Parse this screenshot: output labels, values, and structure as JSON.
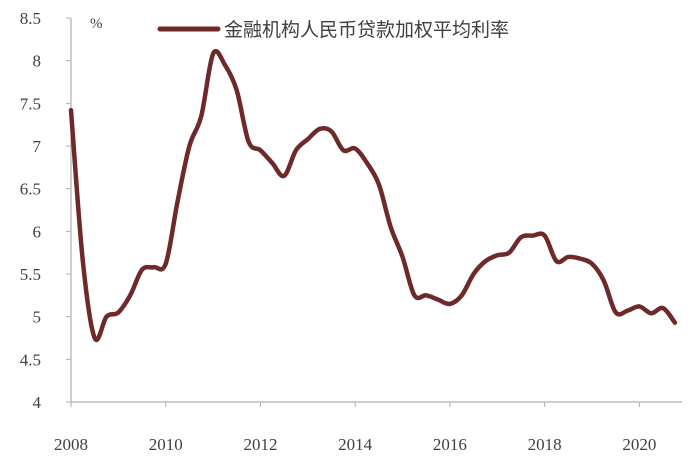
{
  "chart_data": {
    "type": "line",
    "ylabel": "%",
    "ylim": [
      4,
      8.5
    ],
    "xlim": [
      2008,
      2020.9
    ],
    "y_ticks": [
      "4",
      "4.5",
      "5",
      "5.5",
      "6",
      "6.5",
      "7",
      "7.5",
      "8",
      "8.5"
    ],
    "x_ticks": [
      "2008",
      "2010",
      "2012",
      "2014",
      "2016",
      "2018",
      "2020"
    ],
    "legend_position": "top-center",
    "colors": {
      "series": "#6e2a2a"
    },
    "series": [
      {
        "name": "金融机构人民币贷款加权平均利率",
        "points": [
          [
            2008.0,
            7.42
          ],
          [
            2008.25,
            5.65
          ],
          [
            2008.5,
            4.75
          ],
          [
            2008.75,
            5.0
          ],
          [
            2009.0,
            5.05
          ],
          [
            2009.25,
            5.25
          ],
          [
            2009.5,
            5.55
          ],
          [
            2009.75,
            5.58
          ],
          [
            2010.0,
            5.62
          ],
          [
            2010.25,
            6.35
          ],
          [
            2010.5,
            7.0
          ],
          [
            2010.75,
            7.35
          ],
          [
            2011.0,
            8.08
          ],
          [
            2011.25,
            7.95
          ],
          [
            2011.5,
            7.65
          ],
          [
            2011.75,
            7.05
          ],
          [
            2012.0,
            6.95
          ],
          [
            2012.25,
            6.8
          ],
          [
            2012.5,
            6.65
          ],
          [
            2012.75,
            6.95
          ],
          [
            2013.0,
            7.08
          ],
          [
            2013.25,
            7.2
          ],
          [
            2013.5,
            7.17
          ],
          [
            2013.75,
            6.95
          ],
          [
            2014.0,
            6.97
          ],
          [
            2014.25,
            6.8
          ],
          [
            2014.5,
            6.55
          ],
          [
            2014.75,
            6.05
          ],
          [
            2015.0,
            5.7
          ],
          [
            2015.25,
            5.25
          ],
          [
            2015.5,
            5.25
          ],
          [
            2015.75,
            5.2
          ],
          [
            2016.0,
            5.15
          ],
          [
            2016.25,
            5.25
          ],
          [
            2016.5,
            5.5
          ],
          [
            2016.75,
            5.65
          ],
          [
            2017.0,
            5.72
          ],
          [
            2017.25,
            5.75
          ],
          [
            2017.5,
            5.93
          ],
          [
            2017.75,
            5.95
          ],
          [
            2018.0,
            5.95
          ],
          [
            2018.25,
            5.65
          ],
          [
            2018.5,
            5.7
          ],
          [
            2018.75,
            5.68
          ],
          [
            2019.0,
            5.62
          ],
          [
            2019.25,
            5.42
          ],
          [
            2019.5,
            5.05
          ],
          [
            2019.75,
            5.07
          ],
          [
            2020.0,
            5.12
          ],
          [
            2020.25,
            5.04
          ],
          [
            2020.5,
            5.1
          ],
          [
            2020.75,
            4.93
          ]
        ]
      }
    ]
  }
}
